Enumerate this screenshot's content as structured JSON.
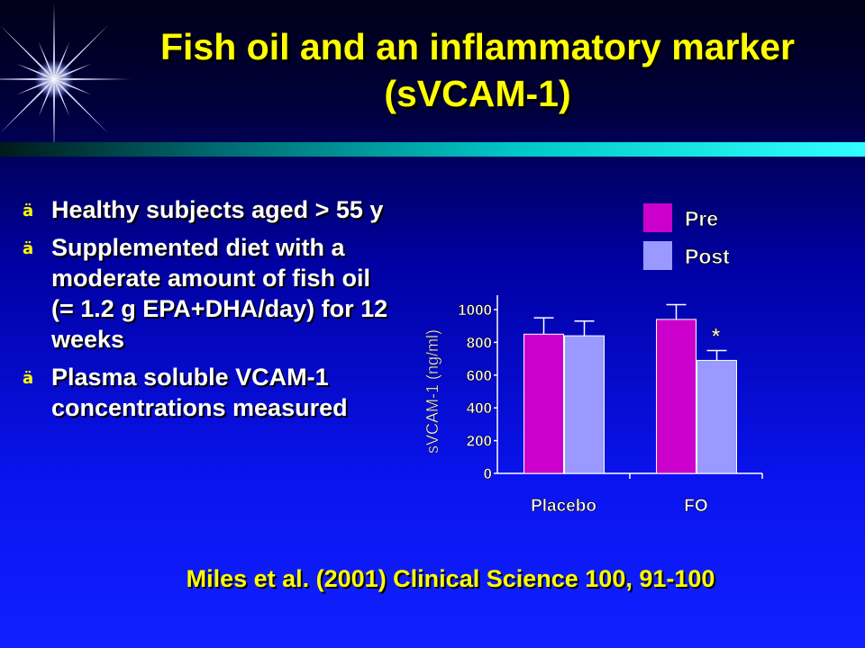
{
  "slide": {
    "title_line1": "Fish oil and an inflammatory marker",
    "title_line2": "(sVCAM-1)",
    "bullets": [
      "Healthy subjects aged > 55 y",
      "Supplemented diet with a moderate amount of fish oil (= 1.2 g EPA+DHA/day) for 12 weeks",
      "Plasma soluble VCAM-1 concentrations measured"
    ],
    "bullet_glyph": "ä",
    "citation": "Miles et al. (2001) Clinical Science 100, 91-100"
  },
  "colors": {
    "title": "#ffff00",
    "pre": "#cc00cc",
    "post": "#9999ff"
  },
  "chart_data": {
    "type": "bar",
    "categories": [
      "Placebo",
      "FO"
    ],
    "series": [
      {
        "name": "Pre",
        "values": [
          850,
          940
        ],
        "error": [
          100,
          90
        ]
      },
      {
        "name": "Post",
        "values": [
          840,
          690
        ],
        "error": [
          90,
          60
        ]
      }
    ],
    "ylabel": "sVCAM-1 (ng/ml)",
    "ylim": [
      0,
      1000
    ],
    "yticks": [
      0,
      200,
      400,
      600,
      800,
      1000
    ],
    "legend_position": "top-right",
    "annotations": [
      {
        "category": "FO",
        "series": "Post",
        "text": "*"
      }
    ]
  }
}
